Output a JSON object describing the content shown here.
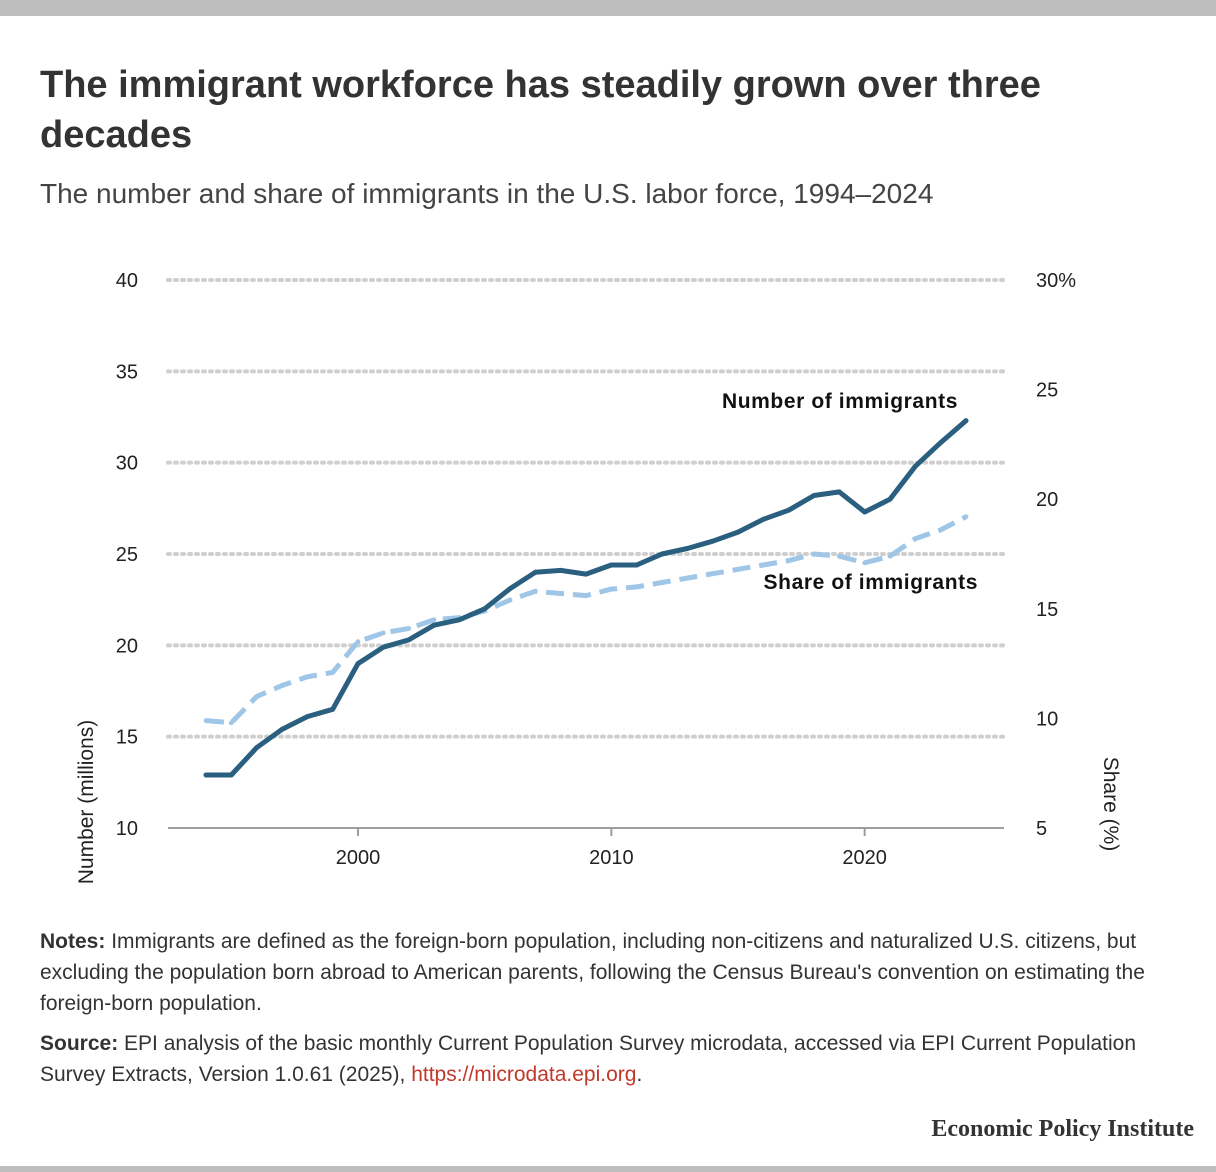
{
  "title": "The immigrant workforce has steadily grown over three decades",
  "subtitle": "The number and share of immigrants in the U.S. labor force, 1994–2024",
  "notes": {
    "label": "Notes:",
    "text": "Immigrants are defined as the foreign-born population, including non-citizens and naturalized U.S. citizens, but excluding the population born abroad to American parents, following the Census Bureau's convention on estimating the foreign-born population."
  },
  "source": {
    "label": "Source:",
    "text": "EPI analysis of the basic monthly Current Population Survey microdata, accessed via EPI Current Population Survey Extracts, Version 1.0.61 (2025), ",
    "link": "https://microdata.epi.org",
    "end": "."
  },
  "brand": "Economic Policy Institute",
  "chart_data": {
    "type": "line",
    "title": "The immigrant workforce has steadily grown over three decades",
    "subtitle": "The number and share of immigrants in the U.S. labor force, 1994–2024",
    "ylabel_left": "Number (millions)",
    "ylabel_right": "Share (%)",
    "xlim": [
      1992.5,
      2025.5
    ],
    "ylim_left": [
      10,
      40
    ],
    "ylim_right": [
      5,
      30
    ],
    "x_ticks": [
      2000,
      2010,
      2020
    ],
    "y_ticks_left": [
      "10",
      "15",
      "20",
      "25",
      "30",
      "35",
      "40"
    ],
    "y_ticks_right": [
      "5",
      "10",
      "15",
      "20",
      "25",
      "30%"
    ],
    "grid": true,
    "x": [
      1994,
      1995,
      1996,
      1997,
      1998,
      1999,
      2000,
      2001,
      2002,
      2003,
      2004,
      2005,
      2006,
      2007,
      2008,
      2009,
      2010,
      2011,
      2012,
      2013,
      2014,
      2015,
      2016,
      2017,
      2018,
      2019,
      2020,
      2021,
      2022,
      2023,
      2024
    ],
    "series": [
      {
        "name": "Number of immigrants",
        "axis": "left",
        "color": "#2a5f80",
        "style": "solid",
        "values": [
          12.9,
          12.9,
          14.4,
          15.4,
          16.1,
          16.5,
          19.0,
          19.9,
          20.3,
          21.1,
          21.4,
          22.0,
          23.1,
          24.0,
          24.1,
          23.9,
          24.4,
          24.4,
          25.0,
          25.3,
          25.7,
          26.2,
          26.9,
          27.4,
          28.2,
          28.4,
          27.3,
          28.0,
          29.8,
          31.1,
          32.3
        ]
      },
      {
        "name": "Share of immigrants",
        "axis": "right",
        "color": "#9fc6e6",
        "style": "dashed",
        "values": [
          9.9,
          9.8,
          11.0,
          11.5,
          11.9,
          12.1,
          13.5,
          13.9,
          14.1,
          14.5,
          14.6,
          14.9,
          15.4,
          15.8,
          15.7,
          15.6,
          15.9,
          16.0,
          16.2,
          16.4,
          16.6,
          16.8,
          17.0,
          17.2,
          17.5,
          17.4,
          17.1,
          17.4,
          18.2,
          18.6,
          19.2
        ]
      }
    ]
  }
}
